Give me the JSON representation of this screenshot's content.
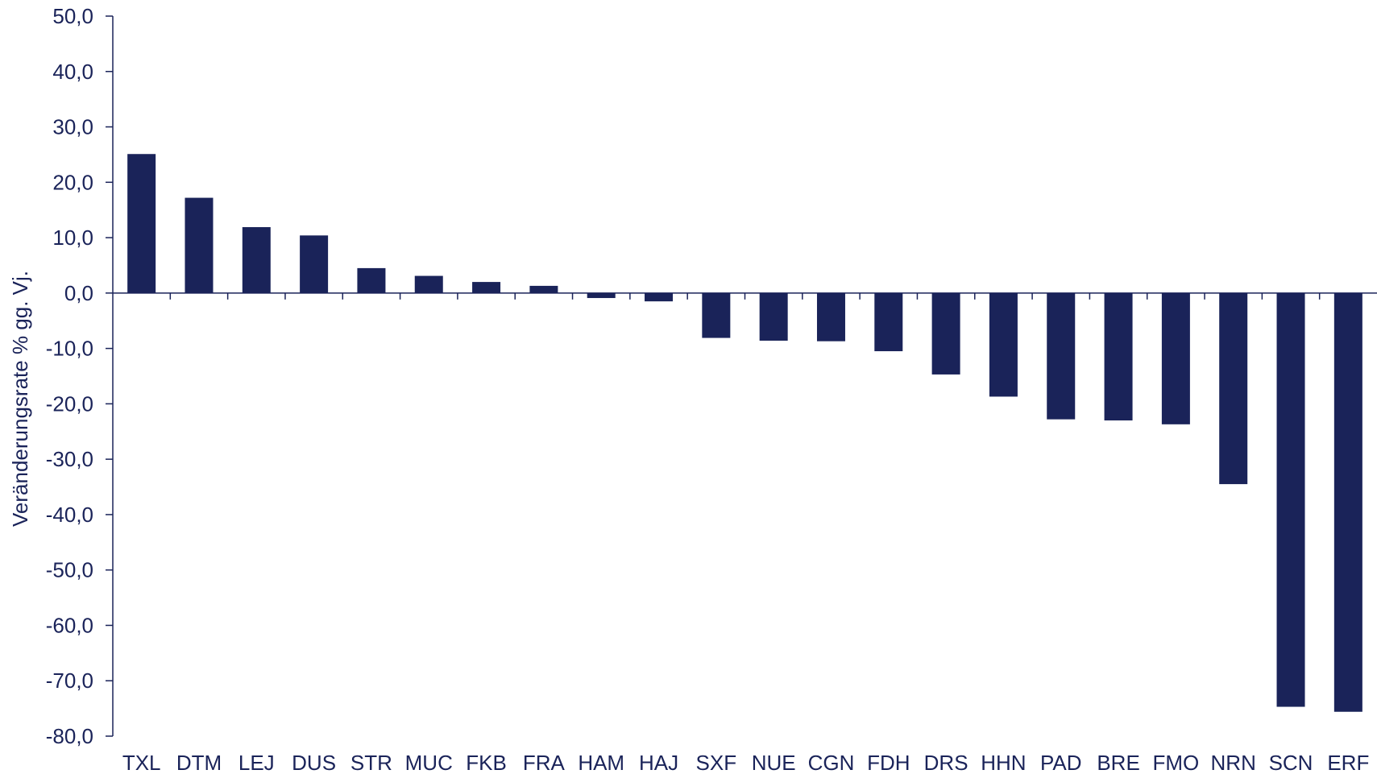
{
  "chart_data": {
    "type": "bar",
    "ylabel": "Veränderungsrate % gg. Vj.",
    "xlabel": "",
    "ylim": [
      -80,
      50
    ],
    "ytick_step": 10,
    "ytick_labels": [
      "50,0",
      "40,0",
      "30,0",
      "20,0",
      "10,0",
      "0,0",
      "-10,0",
      "-20,0",
      "-30,0",
      "-40,0",
      "-50,0",
      "-60,0",
      "-70,0",
      "-80,0"
    ],
    "grid": false,
    "bar_color": "#1a2359",
    "categories": [
      "TXL",
      "DTM",
      "LEJ",
      "DUS",
      "STR",
      "MUC",
      "FKB",
      "FRA",
      "HAM",
      "HAJ",
      "SXF",
      "NUE",
      "CGN",
      "FDH",
      "DRS",
      "HHN",
      "PAD",
      "BRE",
      "FMO",
      "NRN",
      "SCN",
      "ERF"
    ],
    "values": [
      25.1,
      17.2,
      11.9,
      10.4,
      4.5,
      3.1,
      2.0,
      1.3,
      -0.9,
      -1.5,
      -8.1,
      -8.6,
      -8.7,
      -10.5,
      -14.7,
      -18.7,
      -22.8,
      -23.0,
      -23.7,
      -34.5,
      -74.7,
      -75.6
    ]
  }
}
